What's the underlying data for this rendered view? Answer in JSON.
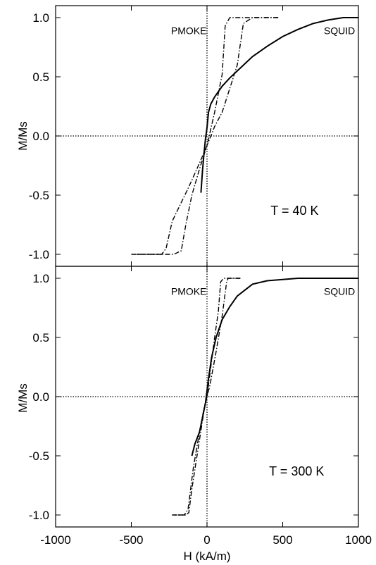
{
  "chart_data": [
    {
      "type": "line",
      "panel": "top",
      "xlabel": "",
      "ylabel": "M/Ms",
      "xlim": [
        -1000,
        1000
      ],
      "ylim": [
        -1.05,
        1.05
      ],
      "xticks": [
        -1000,
        -500,
        0,
        500,
        1000
      ],
      "yticks": [
        1.0,
        0.5,
        0.0,
        -0.5,
        -1.0
      ],
      "ytick_labels": [
        "1.0",
        "0.5",
        "0.0",
        "-0.5",
        "-1.0"
      ],
      "reference_lines": {
        "x": 0,
        "y": 0,
        "style": "dotted"
      },
      "annotations": [
        {
          "text": "T = 40 K",
          "x": 420,
          "y": -0.63
        },
        {
          "text": "PMOKE",
          "x": -120,
          "y": 0.89
        },
        {
          "text": "SQUID",
          "x": 875,
          "y": 0.89
        }
      ],
      "series": [
        {
          "name": "SQUID",
          "style": "solid",
          "x": [
            -40,
            -30,
            -20,
            -10,
            0,
            10,
            25,
            50,
            100,
            150,
            200,
            300,
            400,
            500,
            600,
            700,
            800,
            900,
            1000
          ],
          "y": [
            -0.48,
            -0.3,
            -0.15,
            -0.02,
            0.07,
            0.2,
            0.27,
            0.33,
            0.42,
            0.49,
            0.55,
            0.67,
            0.76,
            0.84,
            0.9,
            0.95,
            0.98,
            1.0,
            1.0
          ]
        },
        {
          "name": "PMOKE",
          "style": "dash-dot",
          "x": [
            -500,
            -300,
            -270,
            -230,
            -120,
            -50,
            0,
            50,
            100,
            120,
            150,
            250,
            400,
            470
          ],
          "y": [
            -1.0,
            -1.0,
            -0.95,
            -0.72,
            -0.43,
            -0.23,
            -0.08,
            0.2,
            0.52,
            0.93,
            1.0,
            1.0,
            1.0,
            1.0
          ]
        },
        {
          "name": "PMOKE",
          "style": "dash-dot",
          "x": [
            470,
            300,
            240,
            200,
            100,
            50,
            0,
            -50,
            -100,
            -140,
            -170,
            -220,
            -300,
            -470
          ],
          "y": [
            1.0,
            1.0,
            0.95,
            0.6,
            0.2,
            0.08,
            -0.08,
            -0.28,
            -0.5,
            -0.75,
            -0.97,
            -1.0,
            -1.0,
            -1.0
          ]
        }
      ]
    },
    {
      "type": "line",
      "panel": "bottom",
      "xlabel": "H (kA/m)",
      "ylabel": "M/Ms",
      "xlim": [
        -1000,
        1000
      ],
      "ylim": [
        -1.05,
        1.05
      ],
      "xticks": [
        -1000,
        -500,
        0,
        500,
        1000
      ],
      "xtick_labels": [
        "-1000",
        "-500",
        "0",
        "500",
        "1000"
      ],
      "yticks": [
        1.0,
        0.5,
        0.0,
        -0.5,
        -1.0
      ],
      "ytick_labels": [
        "1.0",
        "0.5",
        "0.0",
        "-0.5",
        "-1.0"
      ],
      "reference_lines": {
        "x": 0,
        "y": 0,
        "style": "dotted"
      },
      "annotations": [
        {
          "text": "T = 300 K",
          "x": 410,
          "y": -0.63
        },
        {
          "text": "PMOKE",
          "x": -120,
          "y": 0.89
        },
        {
          "text": "SQUID",
          "x": 875,
          "y": 0.89
        }
      ],
      "series": [
        {
          "name": "SQUID",
          "style": "solid",
          "x": [
            -100,
            -80,
            -50,
            -30,
            -10,
            0,
            10,
            30,
            60,
            100,
            150,
            200,
            300,
            400,
            500,
            600,
            800,
            1000
          ],
          "y": [
            -0.5,
            -0.4,
            -0.3,
            -0.18,
            -0.05,
            0.05,
            0.15,
            0.33,
            0.5,
            0.65,
            0.76,
            0.85,
            0.95,
            0.98,
            0.99,
            1.0,
            1.0,
            1.0
          ]
        },
        {
          "name": "PMOKE",
          "style": "dash-dot",
          "x": [
            -230,
            -150,
            -125,
            -90,
            -50,
            -20,
            0,
            20,
            50,
            75,
            90,
            110,
            150,
            220
          ],
          "y": [
            -1.0,
            -1.0,
            -0.95,
            -0.6,
            -0.3,
            -0.1,
            0.0,
            0.2,
            0.5,
            0.72,
            0.97,
            1.0,
            1.0,
            1.0
          ]
        },
        {
          "name": "PMOKE",
          "style": "dash-dot",
          "x": [
            220,
            140,
            130,
            100,
            60,
            20,
            0,
            -20,
            -60,
            -100,
            -120,
            -140,
            -180,
            -230
          ],
          "y": [
            1.0,
            1.0,
            0.97,
            0.68,
            0.38,
            0.1,
            0.0,
            -0.12,
            -0.45,
            -0.78,
            -0.98,
            -1.0,
            -1.0,
            -1.0
          ]
        }
      ]
    }
  ]
}
